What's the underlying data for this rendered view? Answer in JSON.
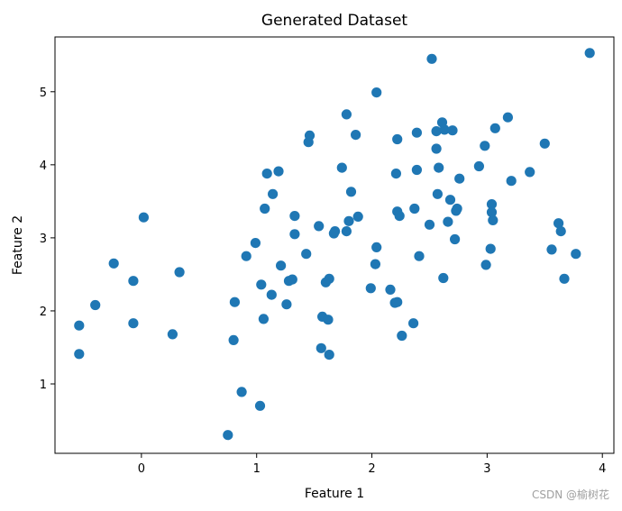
{
  "chart_data": {
    "type": "scatter",
    "title": "Generated Dataset",
    "xlabel": "Feature 1",
    "ylabel": "Feature 2",
    "xlim": [
      -0.75,
      4.1
    ],
    "ylim": [
      0.05,
      5.75
    ],
    "xticks": [
      "0",
      "1",
      "2",
      "3",
      "4"
    ],
    "yticks": [
      "1",
      "2",
      "3",
      "4",
      "5"
    ],
    "grid": false,
    "colors": {
      "marker": "#1f77b4",
      "axes": "#000000",
      "background": "#ffffff"
    },
    "points": [
      [
        -0.54,
        1.8
      ],
      [
        -0.54,
        1.41
      ],
      [
        -0.4,
        2.08
      ],
      [
        -0.24,
        2.65
      ],
      [
        -0.07,
        2.41
      ],
      [
        -0.07,
        1.83
      ],
      [
        0.02,
        3.28
      ],
      [
        0.27,
        1.68
      ],
      [
        0.33,
        2.53
      ],
      [
        0.75,
        0.3
      ],
      [
        0.8,
        1.6
      ],
      [
        0.81,
        2.12
      ],
      [
        0.87,
        0.89
      ],
      [
        0.91,
        2.75
      ],
      [
        0.99,
        2.93
      ],
      [
        1.03,
        0.7
      ],
      [
        1.04,
        2.36
      ],
      [
        1.06,
        1.89
      ],
      [
        1.07,
        3.4
      ],
      [
        1.09,
        3.88
      ],
      [
        1.13,
        2.22
      ],
      [
        1.14,
        3.6
      ],
      [
        1.19,
        3.91
      ],
      [
        1.21,
        2.62
      ],
      [
        1.26,
        2.09
      ],
      [
        1.28,
        2.41
      ],
      [
        1.31,
        2.43
      ],
      [
        1.33,
        3.05
      ],
      [
        1.33,
        3.3
      ],
      [
        1.43,
        2.78
      ],
      [
        1.45,
        4.31
      ],
      [
        1.46,
        4.4
      ],
      [
        1.54,
        3.16
      ],
      [
        1.56,
        1.49
      ],
      [
        1.57,
        1.92
      ],
      [
        1.6,
        2.39
      ],
      [
        1.62,
        1.88
      ],
      [
        1.63,
        2.44
      ],
      [
        1.63,
        1.4
      ],
      [
        1.67,
        3.06
      ],
      [
        1.68,
        3.09
      ],
      [
        1.74,
        3.96
      ],
      [
        1.78,
        3.09
      ],
      [
        1.78,
        4.69
      ],
      [
        1.8,
        3.23
      ],
      [
        1.82,
        3.63
      ],
      [
        1.86,
        4.41
      ],
      [
        1.88,
        3.29
      ],
      [
        1.99,
        2.31
      ],
      [
        2.03,
        2.64
      ],
      [
        2.04,
        2.87
      ],
      [
        2.04,
        4.99
      ],
      [
        2.16,
        2.29
      ],
      [
        2.2,
        2.11
      ],
      [
        2.21,
        3.88
      ],
      [
        2.22,
        3.36
      ],
      [
        2.22,
        2.12
      ],
      [
        2.22,
        4.35
      ],
      [
        2.24,
        3.3
      ],
      [
        2.26,
        1.66
      ],
      [
        2.36,
        1.83
      ],
      [
        2.37,
        3.4
      ],
      [
        2.39,
        4.44
      ],
      [
        2.39,
        3.93
      ],
      [
        2.41,
        2.75
      ],
      [
        2.5,
        3.18
      ],
      [
        2.52,
        5.45
      ],
      [
        2.56,
        4.22
      ],
      [
        2.56,
        4.46
      ],
      [
        2.57,
        3.6
      ],
      [
        2.58,
        3.96
      ],
      [
        2.61,
        4.58
      ],
      [
        2.62,
        2.45
      ],
      [
        2.63,
        4.48
      ],
      [
        2.66,
        3.22
      ],
      [
        2.68,
        3.52
      ],
      [
        2.7,
        4.47
      ],
      [
        2.72,
        2.98
      ],
      [
        2.73,
        3.37
      ],
      [
        2.74,
        3.4
      ],
      [
        2.76,
        3.81
      ],
      [
        2.93,
        3.98
      ],
      [
        2.98,
        4.26
      ],
      [
        2.99,
        2.63
      ],
      [
        3.03,
        2.85
      ],
      [
        3.04,
        3.46
      ],
      [
        3.04,
        3.35
      ],
      [
        3.05,
        3.24
      ],
      [
        3.07,
        4.5
      ],
      [
        3.18,
        4.65
      ],
      [
        3.21,
        3.78
      ],
      [
        3.37,
        3.9
      ],
      [
        3.5,
        4.29
      ],
      [
        3.56,
        2.84
      ],
      [
        3.62,
        3.2
      ],
      [
        3.64,
        3.09
      ],
      [
        3.67,
        2.44
      ],
      [
        3.77,
        2.78
      ],
      [
        3.89,
        5.53
      ]
    ]
  },
  "watermark": "CSDN @榆树花"
}
